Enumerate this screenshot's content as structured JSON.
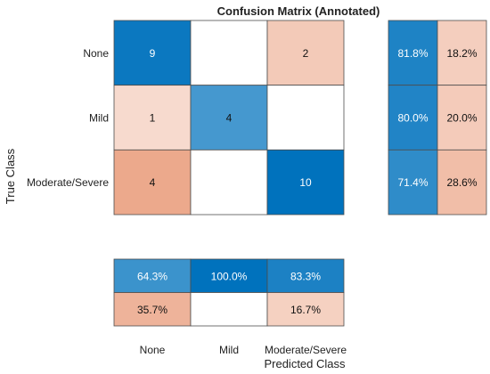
{
  "chart_data": {
    "type": "heatmap",
    "title": "Confusion Matrix (Annotated)",
    "xlabel": "Predicted Class",
    "ylabel": "True Class",
    "classes": [
      "None",
      "Mild",
      "Moderate/Severe"
    ],
    "matrix": [
      [
        9,
        0,
        2
      ],
      [
        1,
        4,
        0
      ],
      [
        4,
        0,
        10
      ]
    ],
    "row_summary": [
      [
        "81.8%",
        "18.2%"
      ],
      [
        "80.0%",
        "20.0%"
      ],
      [
        "71.4%",
        "28.6%"
      ]
    ],
    "column_summary": [
      [
        "64.3%",
        "100.0%",
        "83.3%"
      ],
      [
        "35.7%",
        "",
        "16.7%"
      ]
    ],
    "colors": {
      "correct": "#0072BD",
      "incorrect": "#D95319"
    }
  }
}
